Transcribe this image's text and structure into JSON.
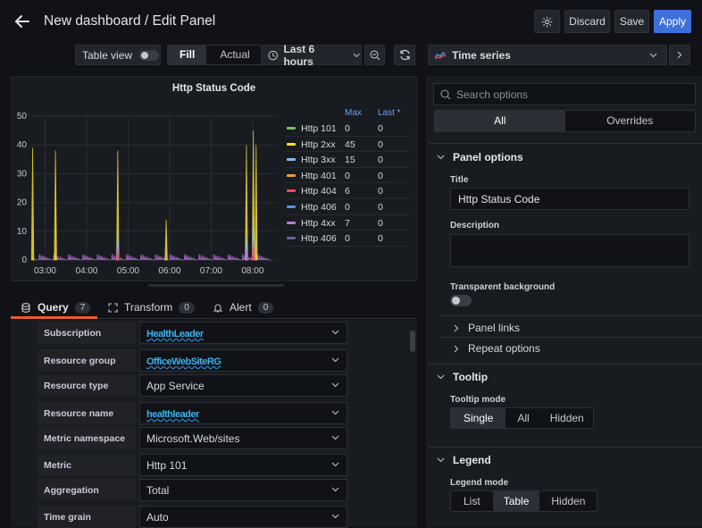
{
  "header": {
    "title": "New dashboard / Edit Panel",
    "discard_label": "Discard",
    "save_label": "Save",
    "apply_label": "Apply"
  },
  "toolbar": {
    "table_view_label": "Table view",
    "fill_label": "Fill",
    "actual_label": "Actual",
    "time_range": "Last 6 hours",
    "visualization": "Time series"
  },
  "panel": {
    "title": "Http Status Code",
    "legend_headers": [
      "Max",
      "Last *"
    ],
    "legend": [
      {
        "name": "Http 101",
        "max": "0",
        "last": "0",
        "color": "#73bf69"
      },
      {
        "name": "Http 2xx",
        "max": "45",
        "last": "0",
        "color": "#fade2a"
      },
      {
        "name": "Http 3xx",
        "max": "15",
        "last": "0",
        "color": "#8ab8ff"
      },
      {
        "name": "Http 401",
        "max": "0",
        "last": "0",
        "color": "#ff9830"
      },
      {
        "name": "Http 404",
        "max": "6",
        "last": "0",
        "color": "#f2495c"
      },
      {
        "name": "Http 406",
        "max": "0",
        "last": "0",
        "color": "#5794f2"
      },
      {
        "name": "Http 4xx",
        "max": "7",
        "last": "0",
        "color": "#b877d9"
      },
      {
        "name": "Http 406",
        "max": "0",
        "last": "0",
        "color": "#705da0"
      }
    ]
  },
  "chart_data": {
    "type": "line",
    "title": "Http Status Code",
    "x_ticks": [
      "03:00",
      "04:00",
      "05:00",
      "06:00",
      "07:00",
      "08:00"
    ],
    "y_ticks": [
      "0",
      "10",
      "20",
      "30",
      "40",
      "50"
    ],
    "ylim": [
      0,
      50
    ],
    "grid": true,
    "legend_placement": "right",
    "series": [
      {
        "name": "Http 2xx",
        "color": "#fade2a",
        "x": [
          "02:42",
          "03:15",
          "04:45",
          "05:55",
          "07:51",
          "08:01",
          "08:05"
        ],
        "values": [
          39,
          38,
          38,
          14,
          40,
          45,
          40
        ]
      },
      {
        "name": "Http 3xx",
        "color": "#8ab8ff",
        "x": [
          "04:45",
          "07:51",
          "08:01"
        ],
        "values": [
          11,
          8,
          15
        ]
      },
      {
        "name": "Http 4xx",
        "color": "#b877d9",
        "x": [
          "04:45",
          "07:51",
          "08:01"
        ],
        "values": [
          5,
          4,
          7
        ]
      },
      {
        "name": "Http 404",
        "color": "#f2495c",
        "x": [
          "04:45",
          "08:01"
        ],
        "values": [
          3,
          6
        ]
      }
    ]
  },
  "query_tabs": {
    "query": {
      "label": "Query",
      "count": "7"
    },
    "transform": {
      "label": "Transform",
      "count": "0"
    },
    "alert": {
      "label": "Alert",
      "count": "0"
    }
  },
  "query_rows": [
    {
      "label": "Subscription",
      "value": "HealthLeader",
      "redacted": true
    },
    {
      "label": "Resource group",
      "value": "OfficeWebSiteRG",
      "redacted": true
    },
    {
      "label": "Resource type",
      "value": "App Service",
      "redacted": false
    },
    {
      "label": "Resource name",
      "value": "healthleader",
      "redacted": true
    },
    {
      "label": "Metric namespace",
      "value": "Microsoft.Web/sites",
      "redacted": false
    },
    {
      "label": "Metric",
      "value": "Http 101",
      "redacted": false
    },
    {
      "label": "Aggregation",
      "value": "Total",
      "redacted": false
    },
    {
      "label": "Time grain",
      "value": "Auto",
      "redacted": false
    }
  ],
  "options": {
    "search_placeholder": "Search options",
    "tab_all": "All",
    "tab_overrides": "Overrides",
    "panel_options": "Panel options",
    "title_label": "Title",
    "title_value": "Http Status Code",
    "description_label": "Description",
    "transparent_label": "Transparent background",
    "panel_links": "Panel links",
    "repeat_options": "Repeat options",
    "tooltip": "Tooltip",
    "tooltip_mode_label": "Tooltip mode",
    "tooltip_modes": [
      "Single",
      "All",
      "Hidden"
    ],
    "legend": "Legend",
    "legend_mode_label": "Legend mode",
    "legend_modes": [
      "List",
      "Table",
      "Hidden"
    ]
  },
  "colors": {
    "accent": "#3d71d9",
    "query_tab_underline": "#f05a28",
    "background": "#111217"
  }
}
